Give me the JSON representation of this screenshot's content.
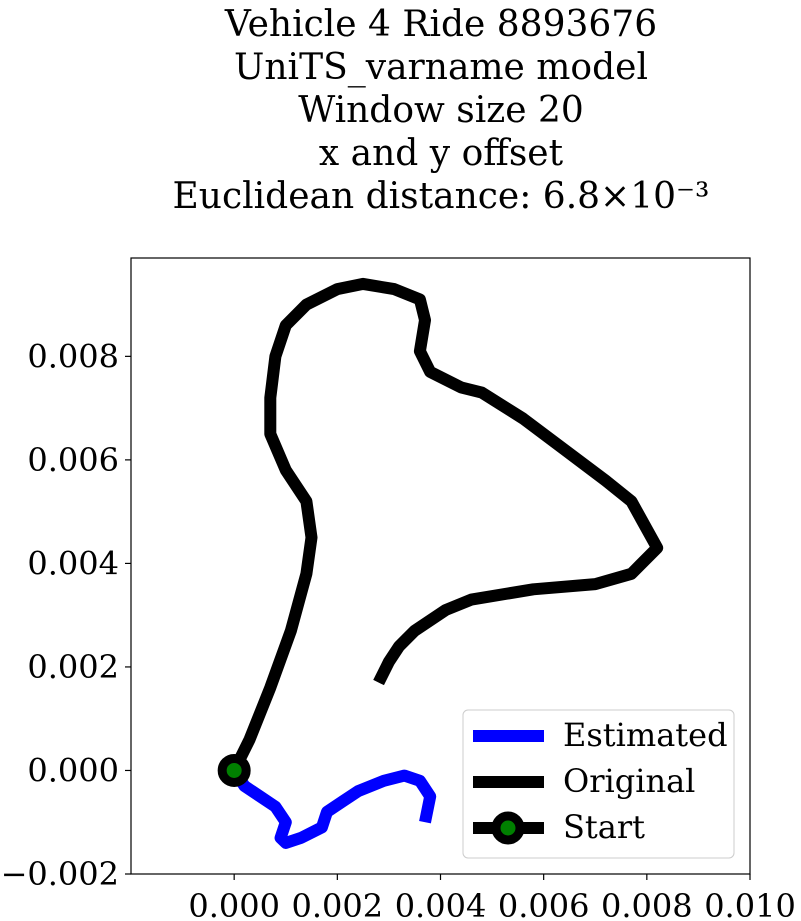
{
  "chart_data": {
    "type": "line",
    "title": "Vehicle 4 Ride 8893676",
    "subtitle_lines": [
      "UniTS_varname model",
      "Window size 20",
      "x and y offset",
      "Euclidean distance: 6.8×10⁻³"
    ],
    "xlim": [
      -0.002,
      0.01
    ],
    "ylim": [
      -0.002,
      0.0099
    ],
    "xticks": [
      0.0,
      0.002,
      0.004,
      0.006,
      0.008,
      0.01
    ],
    "xtick_labels": [
      "0.000",
      "0.002",
      "0.004",
      "0.006",
      "0.008",
      "0.010"
    ],
    "yticks": [
      -0.002,
      0.0,
      0.002,
      0.004,
      0.006,
      0.008
    ],
    "ytick_labels": [
      "−0.002",
      "0.000",
      "0.002",
      "0.004",
      "0.006",
      "0.008"
    ],
    "legend_position": "bottom-right",
    "series": [
      {
        "name": "Estimated",
        "color": "#0000ff",
        "points": [
          [
            0.0,
            0.0
          ],
          [
            0.0002,
            -0.0003
          ],
          [
            0.0005,
            -0.0005
          ],
          [
            0.0008,
            -0.0007
          ],
          [
            0.001,
            -0.001
          ],
          [
            0.0009,
            -0.0013
          ],
          [
            0.001,
            -0.0014
          ],
          [
            0.0013,
            -0.0013
          ],
          [
            0.0017,
            -0.0011
          ],
          [
            0.0018,
            -0.0008
          ],
          [
            0.0021,
            -0.0006
          ],
          [
            0.0024,
            -0.0004
          ],
          [
            0.0029,
            -0.0002
          ],
          [
            0.0033,
            -0.0001
          ],
          [
            0.0036,
            -0.0002
          ],
          [
            0.0038,
            -0.0005
          ],
          [
            0.0037,
            -0.001
          ]
        ]
      },
      {
        "name": "Original",
        "color": "#000000",
        "points": [
          [
            0.0,
            0.0
          ],
          [
            0.0003,
            0.0006
          ],
          [
            0.0007,
            0.0016
          ],
          [
            0.0011,
            0.0027
          ],
          [
            0.0014,
            0.0038
          ],
          [
            0.0015,
            0.0045
          ],
          [
            0.0014,
            0.0052
          ],
          [
            0.001,
            0.0058
          ],
          [
            0.0007,
            0.0065
          ],
          [
            0.0007,
            0.0072
          ],
          [
            0.0008,
            0.008
          ],
          [
            0.001,
            0.0086
          ],
          [
            0.0014,
            0.009
          ],
          [
            0.002,
            0.0093
          ],
          [
            0.0025,
            0.0094
          ],
          [
            0.0031,
            0.0093
          ],
          [
            0.0036,
            0.0091
          ],
          [
            0.0037,
            0.0087
          ],
          [
            0.0036,
            0.0081
          ],
          [
            0.0038,
            0.0077
          ],
          [
            0.0044,
            0.0074
          ],
          [
            0.0048,
            0.0073
          ],
          [
            0.0056,
            0.0068
          ],
          [
            0.0064,
            0.0062
          ],
          [
            0.0072,
            0.0056
          ],
          [
            0.0077,
            0.0052
          ],
          [
            0.0082,
            0.0043
          ],
          [
            0.0077,
            0.0038
          ],
          [
            0.007,
            0.0036
          ],
          [
            0.0058,
            0.0035
          ],
          [
            0.0046,
            0.0033
          ],
          [
            0.0041,
            0.0031
          ],
          [
            0.0035,
            0.0027
          ],
          [
            0.0032,
            0.0024
          ],
          [
            0.003,
            0.0021
          ],
          [
            0.0028,
            0.0017
          ]
        ]
      }
    ],
    "start": {
      "name": "Start",
      "x": 0.0,
      "y": 0.0,
      "edge_color": "#000000",
      "face_color": "#008000"
    }
  }
}
